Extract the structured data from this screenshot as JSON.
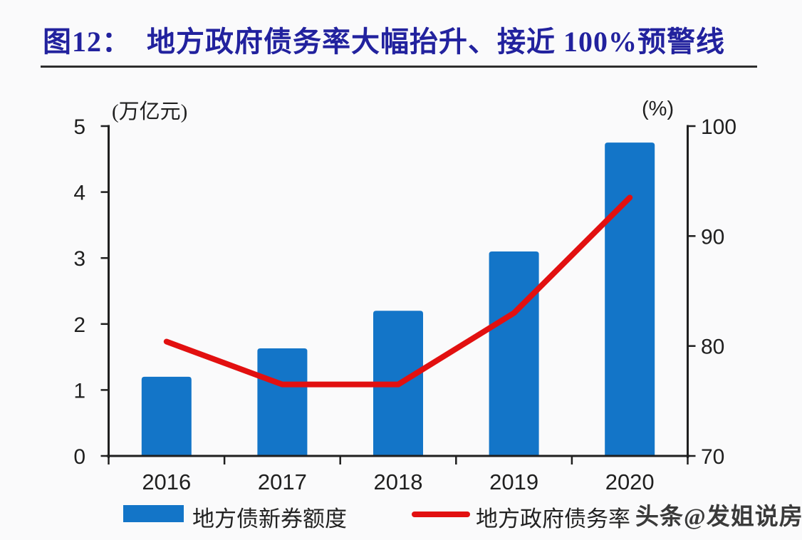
{
  "page": {
    "background": "#FAFAFB"
  },
  "header": {
    "title": "图12：  地方政府债务率大幅抬升、接近 100%预警线",
    "title_color": "#22229E"
  },
  "watermark": {
    "text": "头条@发姐说房",
    "color": "#3A3A3A"
  },
  "colors": {
    "background": "#FAFAFB",
    "title": "#22229E",
    "axis": "#1F1F1F",
    "separator": "#2D2D2D",
    "bar": "#1375C8",
    "line": "#E21010",
    "watermark": "#3A3A3A"
  },
  "chart_data": {
    "type": "bar",
    "subtype": "combo-bar-line-dual-axis",
    "categories": [
      "2016",
      "2017",
      "2018",
      "2019",
      "2020"
    ],
    "series": [
      {
        "name": "地方债新券额度",
        "type": "bar",
        "yaxis": "left",
        "unit": "万亿元",
        "color": "#1375C8",
        "values": [
          1.2,
          1.63,
          2.2,
          3.1,
          4.75
        ]
      },
      {
        "name": "地方政府债务率",
        "type": "line",
        "yaxis": "right",
        "unit": "%",
        "color": "#E21010",
        "values": [
          80.4,
          76.5,
          76.5,
          83,
          93.5
        ]
      }
    ],
    "left_axis": {
      "label": "(万亿元)",
      "min": 0,
      "max": 5,
      "ticks": [
        "0",
        "1",
        "2",
        "3",
        "4",
        "5"
      ]
    },
    "right_axis": {
      "label": "(%)",
      "min": 70,
      "max": 100,
      "ticks": [
        "70",
        "80",
        "90",
        "100"
      ]
    },
    "grid": false,
    "legend_position": "bottom"
  },
  "legend": {
    "items": [
      {
        "label": "地方债新券额度",
        "swatch": "bar",
        "color": "#1375C8"
      },
      {
        "label": "地方政府债务率",
        "swatch": "line",
        "color": "#E21010"
      }
    ]
  }
}
